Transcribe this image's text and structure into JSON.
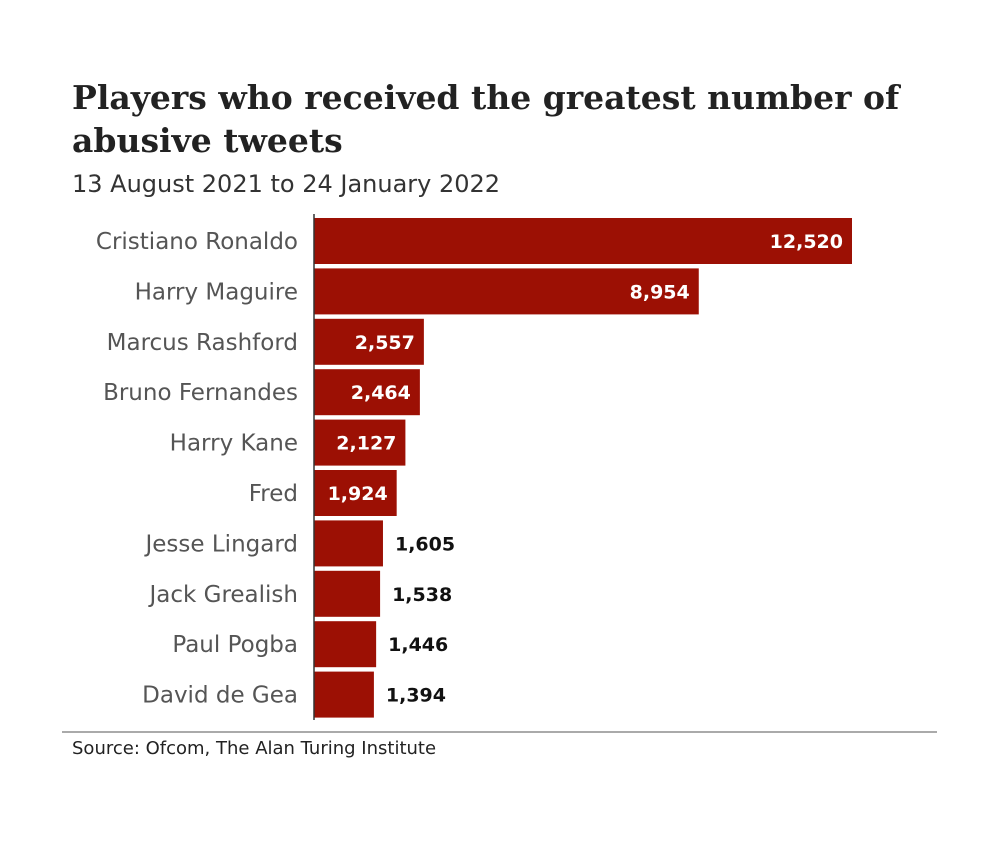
{
  "chart_data": {
    "type": "bar",
    "orientation": "horizontal",
    "title": "Players who received the greatest number of abusive tweets",
    "subtitle": "13 August 2021 to 24 January 2022",
    "source": "Source: Ofcom, The Alan Turing Institute",
    "categories": [
      "Cristiano Ronaldo",
      "Harry Maguire",
      "Marcus Rashford",
      "Bruno Fernandes",
      "Harry Kane",
      "Fred",
      "Jesse Lingard",
      "Jack Grealish",
      "Paul Pogba",
      "David de Gea"
    ],
    "values": [
      12520,
      8954,
      2557,
      2464,
      2127,
      1924,
      1605,
      1538,
      1446,
      1394
    ],
    "data_labels": [
      "12,520",
      "8,954",
      "2,557",
      "2,464",
      "2,127",
      "1,924",
      "1,605",
      "1,538",
      "1,446",
      "1,394"
    ],
    "xlim": [
      0,
      12520
    ],
    "grid": false,
    "bar_color": "#9c1004"
  }
}
